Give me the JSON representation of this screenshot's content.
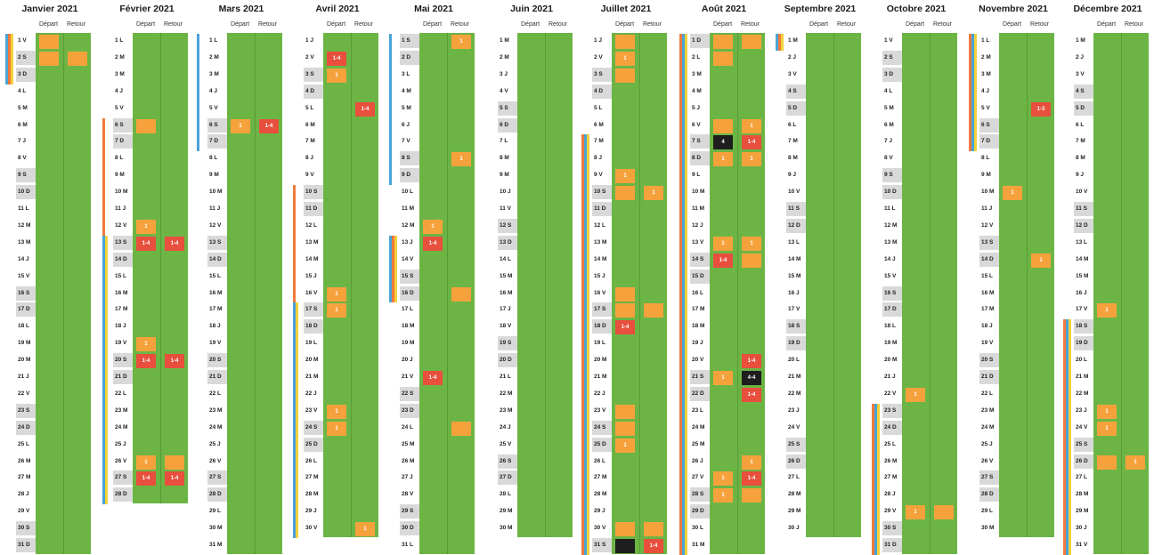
{
  "column_labels": {
    "depart": "Départ",
    "retour": "Retour"
  },
  "colors": {
    "green": "#6cb545",
    "orange": "#f6a23c",
    "red": "#e84f3d",
    "black": "#1e1e1e",
    "weekend": "#d9d9d9",
    "stripe_blue": "#4aa3d8",
    "stripe_orange": "#f07a3a",
    "stripe_yellow": "#f2d13c"
  },
  "months": [
    {
      "title": "Janvier 2021",
      "days": 31,
      "first_letter_index": 4,
      "d": [
        [
          1,
          1,
          ""
        ],
        [
          2,
          2,
          ""
        ]
      ],
      "r": [
        [
          2,
          2,
          ""
        ]
      ]
    },
    {
      "title": "Février 2021",
      "days": 28,
      "first_letter_index": 0,
      "d": [
        [
          6,
          6,
          ""
        ],
        [
          12,
          12,
          "1"
        ],
        [
          13,
          13,
          "1-4"
        ],
        [
          19,
          19,
          "1"
        ],
        [
          20,
          20,
          "1-4"
        ],
        [
          26,
          26,
          "1"
        ],
        [
          27,
          27,
          "1-4"
        ]
      ],
      "r": [
        [
          13,
          13,
          "1-4"
        ],
        [
          20,
          20,
          "1-4"
        ],
        [
          26,
          26,
          ""
        ],
        [
          27,
          27,
          "1-4"
        ]
      ]
    },
    {
      "title": "Mars 2021",
      "days": 31,
      "first_letter_index": 0,
      "d": [
        [
          6,
          6,
          "1"
        ]
      ],
      "r": [
        [
          6,
          6,
          "1-4"
        ]
      ]
    },
    {
      "title": "Avril 2021",
      "days": 30,
      "first_letter_index": 3,
      "d": [
        [
          2,
          2,
          "1-4"
        ],
        [
          3,
          3,
          "1"
        ],
        [
          16,
          16,
          "1"
        ],
        [
          17,
          17,
          "1"
        ],
        [
          23,
          23,
          "1"
        ],
        [
          24,
          24,
          "1"
        ]
      ],
      "r": [
        [
          5,
          5,
          "1-4"
        ],
        [
          30,
          30,
          "1"
        ]
      ]
    },
    {
      "title": "Mai 2021",
      "days": 31,
      "first_letter_index": 5,
      "d": [
        [
          12,
          12,
          "1"
        ],
        [
          13,
          13,
          "1-4"
        ],
        [
          21,
          21,
          "1-4"
        ]
      ],
      "r": [
        [
          1,
          1,
          "1"
        ],
        [
          8,
          8,
          "1"
        ],
        [
          16,
          16,
          ""
        ],
        [
          24,
          24,
          ""
        ]
      ]
    },
    {
      "title": "Juin 2021",
      "days": 30,
      "first_letter_index": 1,
      "d": [],
      "r": []
    },
    {
      "title": "Juillet 2021",
      "days": 31,
      "first_letter_index": 3,
      "d": [
        [
          1,
          1,
          ""
        ],
        [
          2,
          2,
          "1"
        ],
        [
          3,
          3,
          ""
        ],
        [
          9,
          9,
          "1"
        ],
        [
          10,
          10,
          ""
        ],
        [
          16,
          16,
          ""
        ],
        [
          17,
          17,
          ""
        ],
        [
          18,
          18,
          "1-4"
        ],
        [
          23,
          23,
          ""
        ],
        [
          24,
          24,
          ""
        ],
        [
          25,
          25,
          "1"
        ],
        [
          30,
          30,
          ""
        ]
      ],
      "r": [
        [
          10,
          10,
          "1"
        ],
        [
          17,
          17,
          ""
        ],
        [
          30,
          30,
          ""
        ],
        [
          31,
          31,
          "1-4"
        ]
      ],
      "x": [
        [
          31,
          31,
          ""
        ]
      ]
    },
    {
      "title": "Août 2021",
      "days": 31,
      "first_letter_index": 6,
      "d": [
        [
          1,
          1,
          ""
        ],
        [
          2,
          2,
          ""
        ],
        [
          6,
          6,
          ""
        ],
        [
          8,
          8,
          "1"
        ],
        [
          13,
          13,
          "1"
        ],
        [
          14,
          14,
          "1-4"
        ],
        [
          21,
          21,
          "1"
        ],
        [
          27,
          27,
          "1"
        ],
        [
          28,
          28,
          "1"
        ]
      ],
      "r": [
        [
          1,
          1,
          ""
        ],
        [
          6,
          6,
          "1"
        ],
        [
          7,
          7,
          "1-4"
        ],
        [
          8,
          8,
          "1"
        ],
        [
          13,
          13,
          "1"
        ],
        [
          14,
          14,
          ""
        ],
        [
          20,
          20,
          "1-4"
        ],
        [
          22,
          22,
          "1-4"
        ],
        [
          26,
          26,
          "1"
        ],
        [
          27,
          27,
          "1-4"
        ],
        [
          28,
          28,
          ""
        ]
      ],
      "x": [
        [
          7,
          7,
          "4"
        ]
      ],
      "xr": [
        [
          21,
          21,
          "4-4"
        ]
      ]
    },
    {
      "title": "Septembre 2021",
      "days": 30,
      "first_letter_index": 2,
      "d": [],
      "r": []
    },
    {
      "title": "Octobre 2021",
      "days": 31,
      "first_letter_index": 4,
      "d": [
        [
          22,
          22,
          "1"
        ],
        [
          29,
          29,
          "1"
        ]
      ],
      "r": [
        [
          29,
          29,
          ""
        ]
      ]
    },
    {
      "title": "Novembre 2021",
      "days": 30,
      "first_letter_index": 0,
      "d": [
        [
          10,
          10,
          "1"
        ]
      ],
      "r": [
        [
          5,
          5,
          "1-3"
        ],
        [
          14,
          14,
          "1"
        ]
      ]
    },
    {
      "title": "Décembre 2021",
      "days": 31,
      "first_letter_index": 2,
      "d": [
        [
          17,
          17,
          "1"
        ],
        [
          23,
          23,
          "1"
        ],
        [
          24,
          24,
          "1"
        ],
        [
          26,
          26,
          ""
        ]
      ],
      "r": [
        [
          26,
          26,
          "1"
        ]
      ]
    }
  ],
  "weekday_letters": [
    "L",
    "M",
    "M",
    "J",
    "V",
    "S",
    "D"
  ]
}
